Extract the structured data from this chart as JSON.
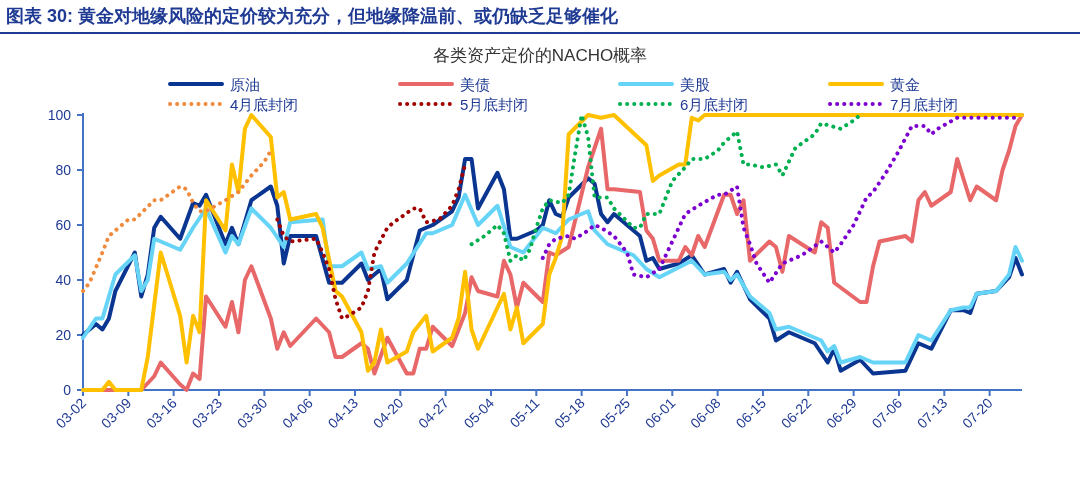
{
  "chart_data": {
    "type": "line",
    "title": "图表 30: 黄金对地缘风险的定价较为充分，但地缘降温前、或仍缺乏足够催化",
    "subtitle": "各类资产定价的NACHO概率",
    "legend": "top",
    "grid": false,
    "xlim": [
      "--03-02",
      "--07-25"
    ],
    "xticks": [
      {
        "value": "--03-02",
        "label": "03-02"
      },
      {
        "value": "--03-09",
        "label": "03-09"
      },
      {
        "value": "--03-16",
        "label": "03-16"
      },
      {
        "value": "--03-23",
        "label": "03-23"
      },
      {
        "value": "--03-30",
        "label": "03-30"
      },
      {
        "value": "--04-06",
        "label": "04-06"
      },
      {
        "value": "--04-13",
        "label": "04-13"
      },
      {
        "value": "--04-20",
        "label": "04-20"
      },
      {
        "value": "--04-27",
        "label": "04-27"
      },
      {
        "value": "--05-04",
        "label": "05-04"
      },
      {
        "value": "--05-11",
        "label": "05-11"
      },
      {
        "value": "--05-18",
        "label": "05-18"
      },
      {
        "value": "--05-25",
        "label": "05-25"
      },
      {
        "value": "--06-01",
        "label": "06-01"
      },
      {
        "value": "--06-08",
        "label": "06-08"
      },
      {
        "value": "--06-15",
        "label": "06-15"
      },
      {
        "value": "--06-22",
        "label": "06-22"
      },
      {
        "value": "--06-29",
        "label": "06-29"
      },
      {
        "value": "--07-06",
        "label": "07-06"
      },
      {
        "value": "--07-13",
        "label": "07-13"
      },
      {
        "value": "--07-20",
        "label": "07-20"
      }
    ],
    "ylim": [
      0,
      100
    ],
    "yticks": [
      0,
      20,
      40,
      60,
      80,
      100
    ],
    "series": [
      {
        "name": "原油",
        "color": "#0a3591",
        "line_style": "solid",
        "x": [
          "--03-02",
          "--03-04",
          "--03-05",
          "--03-06",
          "--03-07",
          "--03-10",
          "--03-11",
          "--03-12",
          "--03-13",
          "--03-14",
          "--03-17",
          "--03-19",
          "--03-20",
          "--03-21",
          "--03-24",
          "--03-25",
          "--03-26",
          "--03-28",
          "--03-31",
          "--04-01",
          "--04-02",
          "--04-03",
          "--04-07",
          "--04-09",
          "--04-11",
          "--04-14",
          "--04-15",
          "--04-17",
          "--04-18",
          "--04-21",
          "--04-23",
          "--04-25",
          "--04-28",
          "--04-29",
          "--04-30",
          "--05-01",
          "--05-02",
          "--05-05",
          "--05-06",
          "--05-07",
          "--05-08",
          "--05-11",
          "--05-12",
          "--05-13",
          "--05-14",
          "--05-15",
          "--05-16",
          "--05-19",
          "--05-20",
          "--05-21",
          "--05-22",
          "--05-23",
          "--05-27",
          "--05-28",
          "--05-29",
          "--05-30",
          "--06-02",
          "--06-04",
          "--06-06",
          "--06-09",
          "--06-10",
          "--06-11",
          "--06-13",
          "--06-16",
          "--06-17",
          "--06-19",
          "--06-23",
          "--06-25",
          "--06-26",
          "--06-27",
          "--06-30",
          "--07-02",
          "--07-07",
          "--07-09",
          "--07-11",
          "--07-14",
          "--07-16",
          "--07-17",
          "--07-18",
          "--07-21",
          "--07-23",
          "--07-24",
          "--07-25"
        ],
        "values": [
          20,
          24,
          22,
          26,
          36,
          50,
          34,
          42,
          59,
          63,
          55,
          68,
          67,
          71,
          53,
          59,
          53,
          69,
          74,
          67,
          46,
          56,
          56,
          39,
          39,
          46,
          40,
          44,
          33,
          40,
          58,
          60,
          65,
          70,
          84,
          84,
          66,
          79,
          73,
          55,
          55,
          58,
          60,
          69,
          64,
          63,
          70,
          77,
          75,
          64,
          61,
          64,
          56,
          47,
          48,
          44,
          46,
          49,
          42,
          44,
          39,
          43,
          33,
          26,
          18,
          21,
          17,
          10,
          15,
          7,
          11,
          6,
          7,
          17,
          15,
          29,
          29,
          28,
          35,
          36,
          41,
          48,
          42
        ]
      },
      {
        "name": "美债",
        "color": "#e8686a",
        "line_style": "solid",
        "x": [
          "--03-05",
          "--03-11",
          "--03-13",
          "--03-14",
          "--03-17",
          "--03-18",
          "--03-19",
          "--03-20",
          "--03-21",
          "--03-24",
          "--03-25",
          "--03-26",
          "--03-27",
          "--03-28",
          "--03-31",
          "--04-01",
          "--04-02",
          "--04-03",
          "--04-07",
          "--04-09",
          "--04-10",
          "--04-11",
          "--04-14",
          "--04-15",
          "--04-16",
          "--04-18",
          "--04-21",
          "--04-22",
          "--04-23",
          "--04-24",
          "--04-25",
          "--04-28",
          "--04-29",
          "--04-30",
          "--05-01",
          "--05-02",
          "--05-05",
          "--05-06",
          "--05-07",
          "--05-08",
          "--05-09",
          "--05-12",
          "--05-13",
          "--05-14",
          "--05-16",
          "--05-19",
          "--05-21",
          "--05-22",
          "--05-23",
          "--05-27",
          "--05-28",
          "--05-29",
          "--05-30",
          "--06-02",
          "--06-03",
          "--06-04",
          "--06-05",
          "--06-06",
          "--06-09",
          "--06-10",
          "--06-11",
          "--06-12",
          "--06-13",
          "--06-16",
          "--06-17",
          "--06-18",
          "--06-19",
          "--06-23",
          "--06-24",
          "--06-25",
          "--06-26",
          "--06-30",
          "--07-01",
          "--07-02",
          "--07-03",
          "--07-07",
          "--07-08",
          "--07-09",
          "--07-10",
          "--07-11",
          "--07-14",
          "--07-15",
          "--07-17",
          "--07-18",
          "--07-21",
          "--07-22",
          "--07-23",
          "--07-24",
          "--07-25"
        ],
        "values": [
          0,
          0,
          5,
          10,
          2,
          0,
          6,
          4,
          34,
          23,
          32,
          21,
          40,
          45,
          26,
          15,
          21,
          16,
          26,
          21,
          12,
          12,
          17,
          15,
          6,
          19,
          6,
          6,
          15,
          15,
          23,
          16,
          22,
          28,
          41,
          36,
          34,
          47,
          42,
          30,
          39,
          32,
          50,
          49,
          52,
          81,
          95,
          73,
          73,
          72,
          58,
          55,
          47,
          47,
          52,
          49,
          56,
          52,
          71,
          71,
          64,
          69,
          47,
          54,
          52,
          43,
          56,
          50,
          61,
          59,
          39,
          32,
          32,
          45,
          54,
          56,
          54,
          69,
          72,
          67,
          72,
          84,
          69,
          74,
          69,
          80,
          87,
          96,
          100
        ]
      },
      {
        "name": "美股",
        "color": "#66d4f7",
        "line_style": "solid",
        "x": [
          "--03-02",
          "--03-04",
          "--03-05",
          "--03-07",
          "--03-10",
          "--03-11",
          "--03-12",
          "--03-13",
          "--03-17",
          "--03-19",
          "--03-21",
          "--03-24",
          "--03-25",
          "--03-26",
          "--03-28",
          "--03-31",
          "--04-02",
          "--04-03",
          "--04-08",
          "--04-09",
          "--04-11",
          "--04-14",
          "--04-15",
          "--04-17",
          "--04-18",
          "--04-21",
          "--04-24",
          "--04-25",
          "--04-28",
          "--04-30",
          "--05-02",
          "--05-05",
          "--05-07",
          "--05-09",
          "--05-12",
          "--05-14",
          "--05-16",
          "--05-19",
          "--05-20",
          "--05-22",
          "--05-26",
          "--05-28",
          "--05-30",
          "--06-04",
          "--06-06",
          "--06-09",
          "--06-10",
          "--06-11",
          "--06-13",
          "--06-16",
          "--06-17",
          "--06-19",
          "--06-24",
          "--06-25",
          "--06-26",
          "--06-27",
          "--06-30",
          "--07-02",
          "--07-07",
          "--07-09",
          "--07-11",
          "--07-14",
          "--07-16",
          "--07-17",
          "--07-18",
          "--07-21",
          "--07-23",
          "--07-24",
          "--07-25"
        ],
        "values": [
          19,
          26,
          26,
          42,
          49,
          36,
          40,
          55,
          51,
          59,
          66,
          50,
          56,
          53,
          66,
          59,
          52,
          61,
          62,
          45,
          45,
          50,
          44,
          45,
          39,
          46,
          57,
          57,
          60,
          71,
          60,
          67,
          52,
          50,
          59,
          57,
          62,
          65,
          58,
          53,
          49,
          44,
          41,
          47,
          42,
          43,
          40,
          42,
          34,
          28,
          22,
          23,
          18,
          14,
          16,
          10,
          12,
          10,
          10,
          20,
          18,
          29,
          30,
          30,
          35,
          36,
          42,
          52,
          47
        ]
      },
      {
        "name": "黄金",
        "color": "#ffc000",
        "line_style": "solid",
        "x": [
          "--03-02",
          "--03-05",
          "--03-06",
          "--03-07",
          "--03-11",
          "--03-12",
          "--03-14",
          "--03-17",
          "--03-18",
          "--03-19",
          "--03-20",
          "--03-21",
          "--03-24",
          "--03-25",
          "--03-26",
          "--03-27",
          "--03-28",
          "--03-31",
          "--04-01",
          "--04-02",
          "--04-03",
          "--04-07",
          "--04-08",
          "--04-10",
          "--04-11",
          "--04-14",
          "--04-15",
          "--04-16",
          "--04-17",
          "--04-18",
          "--04-21",
          "--04-22",
          "--04-24",
          "--04-25",
          "--04-28",
          "--04-29",
          "--04-30",
          "--05-01",
          "--05-02",
          "--05-06",
          "--05-07",
          "--05-08",
          "--05-09",
          "--05-12",
          "--05-13",
          "--05-14",
          "--05-15",
          "--05-16",
          "--05-19",
          "--05-21",
          "--05-23",
          "--05-28",
          "--05-29",
          "--05-30",
          "--06-02",
          "--06-03",
          "--06-04",
          "--06-05",
          "--06-06",
          "--07-25"
        ],
        "values": [
          0,
          0,
          3,
          0,
          0,
          12,
          50,
          27,
          10,
          27,
          21,
          69,
          58,
          82,
          72,
          95,
          100,
          92,
          70,
          72,
          62,
          64,
          59,
          36,
          34,
          21,
          7,
          10,
          22,
          10,
          14,
          21,
          27,
          14,
          19,
          26,
          43,
          22,
          15,
          35,
          22,
          30,
          17,
          24,
          42,
          48,
          56,
          93,
          100,
          99,
          100,
          89,
          76,
          78,
          82,
          82,
          99,
          98,
          100,
          100
        ]
      },
      {
        "name": "4月底封闭",
        "color": "#f08a3c",
        "line_style": "dotted",
        "x": [
          "--03-02",
          "--03-03",
          "--03-05",
          "--03-06",
          "--03-09",
          "--03-10",
          "--03-13",
          "--03-14",
          "--03-17",
          "--03-18",
          "--03-19",
          "--03-20",
          "--03-21",
          "--03-24",
          "--03-26",
          "--03-28",
          "--03-30",
          "--03-31"
        ],
        "values": [
          36,
          39,
          50,
          56,
          62,
          62,
          69,
          69,
          74,
          73,
          68,
          65,
          65,
          69,
          72,
          78,
          83,
          87
        ]
      },
      {
        "name": "5月底封闭",
        "color": "#a00000",
        "line_style": "dotted",
        "x": [
          "--04-01",
          "--04-02",
          "--04-03",
          "--04-07",
          "--04-08",
          "--04-09",
          "--04-10",
          "--04-11",
          "--04-12",
          "--04-14",
          "--04-15",
          "--04-16",
          "--04-18",
          "--04-19",
          "--04-22",
          "--04-23",
          "--04-24",
          "--04-26",
          "--04-28",
          "--04-29",
          "--04-30"
        ],
        "values": [
          62,
          56,
          54,
          55,
          50,
          44,
          33,
          26,
          27,
          30,
          36,
          50,
          59,
          61,
          66,
          66,
          61,
          62,
          67,
          73,
          82
        ]
      },
      {
        "name": "6月底封闭",
        "color": "#00b050",
        "line_style": "dotted",
        "x": [
          "--05-01",
          "--05-03",
          "--05-05",
          "--05-06",
          "--05-07",
          "--05-08",
          "--05-09",
          "--05-10",
          "--05-11",
          "--05-12",
          "--05-13",
          "--05-15",
          "--05-16",
          "--05-17",
          "--05-18",
          "--05-19",
          "--05-20",
          "--05-22",
          "--05-23",
          "--05-26",
          "--05-27",
          "--05-28",
          "--05-30",
          "--05-31",
          "--06-01",
          "--06-03",
          "--06-04",
          "--06-06",
          "--06-08",
          "--06-09",
          "--06-11",
          "--06-12",
          "--06-13",
          "--06-15",
          "--06-17",
          "--06-18",
          "--06-19",
          "--06-20",
          "--06-23",
          "--06-24",
          "--06-27",
          "--06-29",
          "--06-30"
        ],
        "values": [
          53,
          56,
          60,
          57,
          47,
          49,
          47,
          51,
          59,
          66,
          69,
          68,
          71,
          86,
          100,
          92,
          70,
          70,
          66,
          59,
          59,
          64,
          64,
          70,
          76,
          81,
          84,
          84,
          87,
          90,
          94,
          82,
          82,
          81,
          82,
          78,
          83,
          88,
          93,
          97,
          95,
          98,
          100
        ]
      },
      {
        "name": "7月底封闭",
        "color": "#7b00d0",
        "line_style": "dotted",
        "x": [
          "--05-12",
          "--05-13",
          "--05-14",
          "--05-16",
          "--05-17",
          "--05-19",
          "--05-20",
          "--05-21",
          "--05-23",
          "--05-25",
          "--05-26",
          "--05-28",
          "--05-30",
          "--05-31",
          "--06-02",
          "--06-03",
          "--06-05",
          "--06-08",
          "--06-09",
          "--06-11",
          "--06-12",
          "--06-13",
          "--06-14",
          "--06-16",
          "--06-18",
          "--06-21",
          "--06-24",
          "--06-26",
          "--06-27",
          "--06-29",
          "--07-01",
          "--07-02",
          "--07-04",
          "--07-06",
          "--07-08",
          "--07-09",
          "--07-10",
          "--07-11",
          "--07-12",
          "--07-15",
          "--07-24"
        ],
        "values": [
          48,
          53,
          55,
          56,
          55,
          58,
          60,
          59,
          56,
          50,
          42,
          41,
          44,
          49,
          59,
          64,
          67,
          71,
          71,
          74,
          59,
          53,
          46,
          39,
          46,
          49,
          54,
          50,
          53,
          60,
          70,
          72,
          79,
          87,
          96,
          96,
          96,
          93,
          95,
          99,
          99
        ]
      }
    ]
  }
}
